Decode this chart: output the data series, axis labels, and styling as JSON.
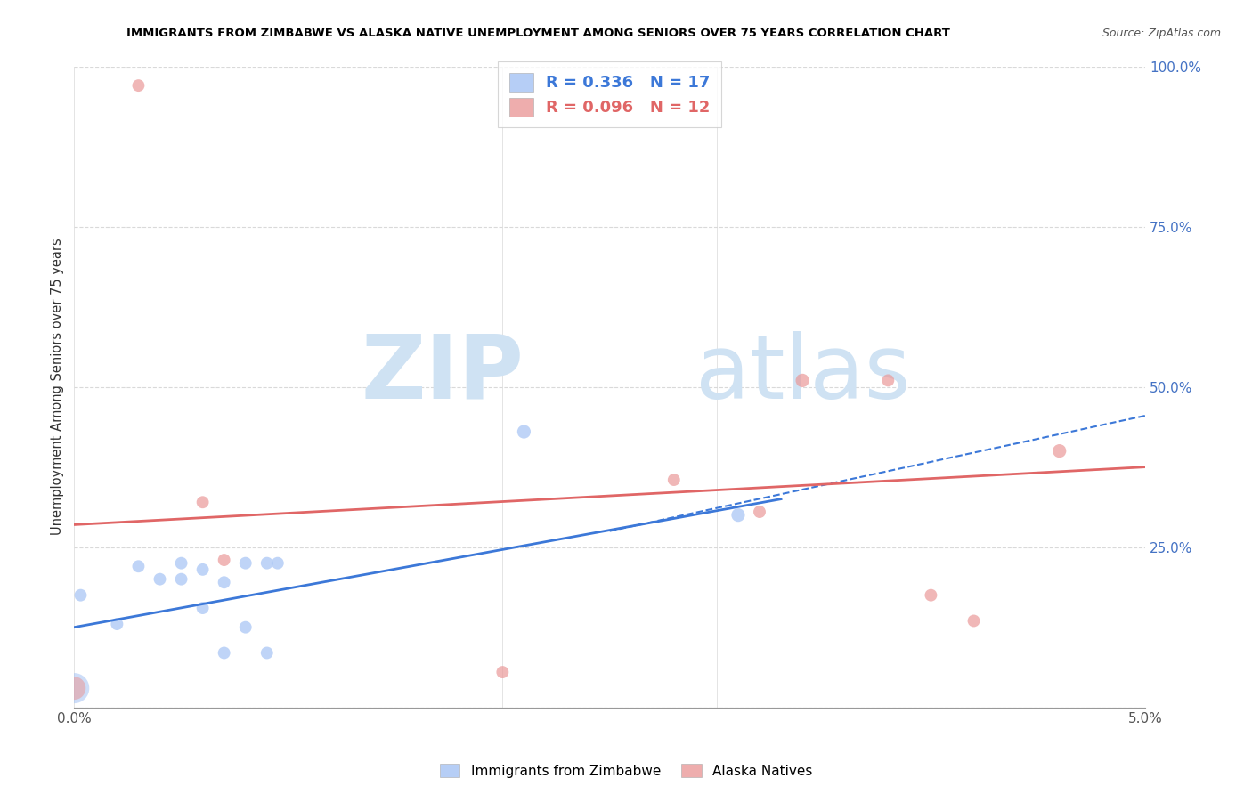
{
  "title": "IMMIGRANTS FROM ZIMBABWE VS ALASKA NATIVE UNEMPLOYMENT AMONG SENIORS OVER 75 YEARS CORRELATION CHART",
  "source": "Source: ZipAtlas.com",
  "ylabel": "Unemployment Among Seniors over 75 years",
  "xlim": [
    0.0,
    0.05
  ],
  "ylim": [
    0.0,
    1.0
  ],
  "xticks": [
    0.0,
    0.01,
    0.02,
    0.03,
    0.04,
    0.05
  ],
  "xtick_labels": [
    "0.0%",
    "",
    "",
    "",
    "",
    "5.0%"
  ],
  "yticks_right": [
    0.0,
    0.25,
    0.5,
    0.75,
    1.0
  ],
  "ytick_right_labels": [
    "",
    "25.0%",
    "50.0%",
    "75.0%",
    "100.0%"
  ],
  "legend1_label": "Immigrants from Zimbabwe",
  "legend1_R": "R = 0.336",
  "legend1_N": "N = 17",
  "legend2_label": "Alaska Natives",
  "legend2_R": "R = 0.096",
  "legend2_N": "N = 12",
  "blue_color": "#a4c2f4",
  "pink_color": "#ea9999",
  "blue_line_color": "#3c78d8",
  "pink_line_color": "#e06666",
  "blue_dashed_color": "#3c78d8",
  "watermark_zip": "ZIP",
  "watermark_atlas": "atlas",
  "watermark_color": "#cfe2f3",
  "blue_scatter_x": [
    0.0003,
    0.002,
    0.003,
    0.004,
    0.005,
    0.005,
    0.006,
    0.006,
    0.007,
    0.007,
    0.008,
    0.008,
    0.009,
    0.009,
    0.0095,
    0.021,
    0.031
  ],
  "blue_scatter_y": [
    0.175,
    0.13,
    0.22,
    0.2,
    0.2,
    0.225,
    0.155,
    0.215,
    0.195,
    0.085,
    0.125,
    0.225,
    0.085,
    0.225,
    0.225,
    0.43,
    0.3
  ],
  "blue_scatter_sizes": [
    100,
    100,
    100,
    100,
    100,
    100,
    100,
    100,
    100,
    100,
    100,
    100,
    100,
    100,
    100,
    120,
    120
  ],
  "blue_large_x": [
    0.0
  ],
  "blue_large_y": [
    0.03
  ],
  "blue_large_size": [
    600
  ],
  "pink_scatter_x": [
    0.006,
    0.007,
    0.02,
    0.028,
    0.032,
    0.034,
    0.04,
    0.042,
    0.046
  ],
  "pink_scatter_y": [
    0.32,
    0.23,
    0.055,
    0.355,
    0.305,
    0.51,
    0.175,
    0.135,
    0.4
  ],
  "pink_scatter_sizes": [
    100,
    100,
    100,
    100,
    100,
    120,
    100,
    100,
    120
  ],
  "pink_top_x": [
    0.003
  ],
  "pink_top_y": [
    0.97
  ],
  "pink_top_size": [
    100
  ],
  "pink_mid_x": [
    0.038
  ],
  "pink_mid_y": [
    0.51
  ],
  "pink_mid_size": [
    100
  ],
  "pink_large_x": [
    0.0
  ],
  "pink_large_y": [
    0.03
  ],
  "pink_large_size": [
    350
  ],
  "blue_solid_trend_x": [
    0.0,
    0.033
  ],
  "blue_solid_trend_y": [
    0.125,
    0.325
  ],
  "blue_dashed_trend_x": [
    0.025,
    0.05
  ],
  "blue_dashed_trend_y": [
    0.275,
    0.455
  ],
  "pink_solid_trend_x": [
    0.0,
    0.05
  ],
  "pink_solid_trend_y": [
    0.285,
    0.375
  ],
  "grid_color": "#d9d9d9",
  "background_color": "#ffffff",
  "title_color": "#000000",
  "right_axis_color": "#4472c4",
  "bottom_label": "Immigrants from Zimbabwe",
  "bottom_label2": "Alaska Natives"
}
